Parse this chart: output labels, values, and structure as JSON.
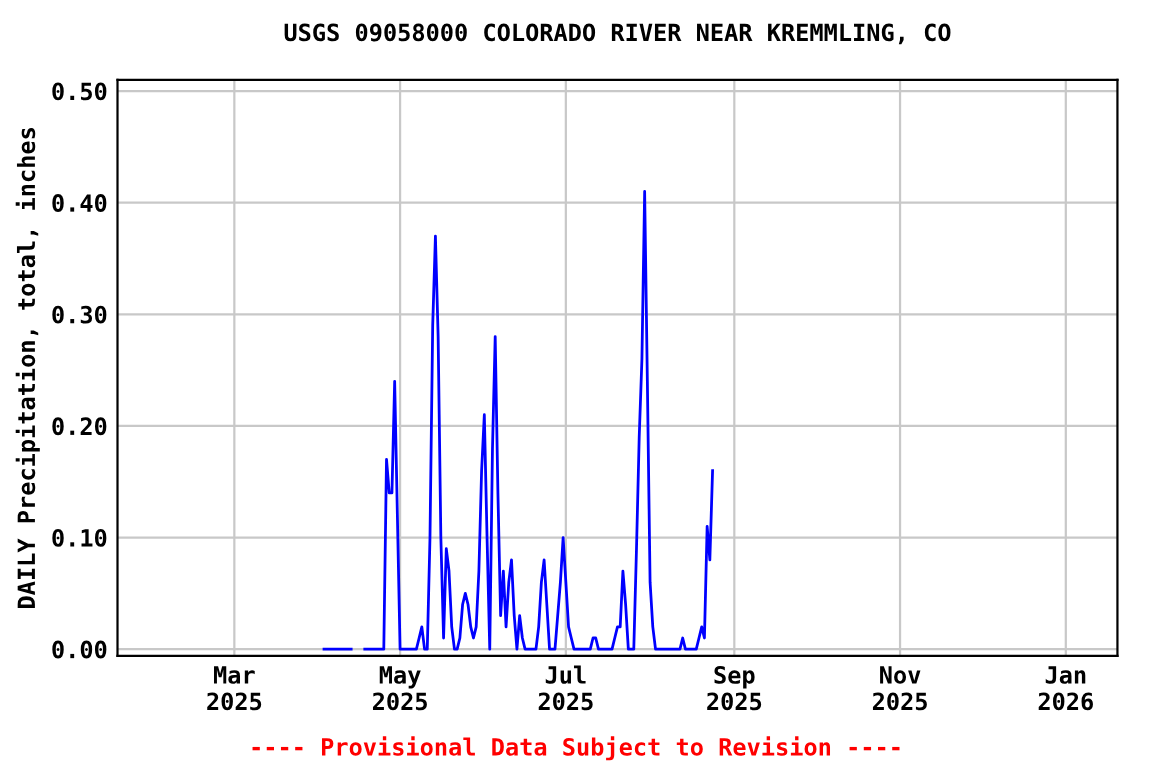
{
  "chart_data": {
    "type": "line",
    "title": "USGS 09058000 COLORADO RIVER NEAR KREMMLING, CO",
    "ylabel": "DAILY Precipitation, total, inches",
    "annotations": [
      "---- Provisional Data Subject to Revision ----"
    ],
    "grid": true,
    "marker": "none",
    "line_style": "solid",
    "xlim": [
      "2025-01-17",
      "2026-01-20"
    ],
    "xticks": [
      {
        "value": "2025-03-01",
        "label": "Mar\n2025"
      },
      {
        "value": "2025-05-01",
        "label": "May\n2025"
      },
      {
        "value": "2025-07-01",
        "label": "Jul\n2025"
      },
      {
        "value": "2025-09-01",
        "label": "Sep\n2025"
      },
      {
        "value": "2025-11-01",
        "label": "Nov\n2025"
      },
      {
        "value": "2026-01-01",
        "label": "Jan\n2026"
      }
    ],
    "ylim": [
      -0.006,
      0.51
    ],
    "yticks": [
      {
        "value": 0,
        "label": "0.00"
      },
      {
        "value": 0.1,
        "label": "0.10"
      },
      {
        "value": 0.2,
        "label": "0.20"
      },
      {
        "value": 0.3,
        "label": "0.30"
      },
      {
        "value": 0.4,
        "label": "0.40"
      },
      {
        "value": 0.5,
        "label": "0.50"
      }
    ],
    "x": [
      "2025-04-03",
      "2025-04-04",
      "2025-04-05",
      "2025-04-06",
      "2025-04-07",
      "2025-04-08",
      "2025-04-09",
      "2025-04-10",
      "2025-04-11",
      "2025-04-12",
      "2025-04-13",
      "2025-04-14",
      "2025-04-15",
      "2025-04-16",
      "2025-04-17",
      "2025-04-18",
      "2025-04-19",
      "2025-04-20",
      "2025-04-21",
      "2025-04-22",
      "2025-04-23",
      "2025-04-24",
      "2025-04-25",
      "2025-04-26",
      "2025-04-27",
      "2025-04-28",
      "2025-04-29",
      "2025-04-30",
      "2025-05-01",
      "2025-05-02",
      "2025-05-03",
      "2025-05-04",
      "2025-05-05",
      "2025-05-06",
      "2025-05-07",
      "2025-05-08",
      "2025-05-09",
      "2025-05-10",
      "2025-05-11",
      "2025-05-12",
      "2025-05-13",
      "2025-05-14",
      "2025-05-15",
      "2025-05-16",
      "2025-05-17",
      "2025-05-18",
      "2025-05-19",
      "2025-05-20",
      "2025-05-21",
      "2025-05-22",
      "2025-05-23",
      "2025-05-24",
      "2025-05-25",
      "2025-05-26",
      "2025-05-27",
      "2025-05-28",
      "2025-05-29",
      "2025-05-30",
      "2025-05-31",
      "2025-06-01",
      "2025-06-02",
      "2025-06-03",
      "2025-06-04",
      "2025-06-05",
      "2025-06-06",
      "2025-06-07",
      "2025-06-08",
      "2025-06-09",
      "2025-06-10",
      "2025-06-11",
      "2025-06-12",
      "2025-06-13",
      "2025-06-14",
      "2025-06-15",
      "2025-06-16",
      "2025-06-17",
      "2025-06-18",
      "2025-06-19",
      "2025-06-20",
      "2025-06-21",
      "2025-06-22",
      "2025-06-23",
      "2025-06-24",
      "2025-06-25",
      "2025-06-26",
      "2025-06-27",
      "2025-06-28",
      "2025-06-29",
      "2025-06-30",
      "2025-07-01",
      "2025-07-02",
      "2025-07-03",
      "2025-07-04",
      "2025-07-05",
      "2025-07-06",
      "2025-07-07",
      "2025-07-08",
      "2025-07-09",
      "2025-07-10",
      "2025-07-11",
      "2025-07-12",
      "2025-07-13",
      "2025-07-14",
      "2025-07-15",
      "2025-07-16",
      "2025-07-17",
      "2025-07-18",
      "2025-07-19",
      "2025-07-20",
      "2025-07-21",
      "2025-07-22",
      "2025-07-23",
      "2025-07-24",
      "2025-07-25",
      "2025-07-26",
      "2025-07-27",
      "2025-07-28",
      "2025-07-29",
      "2025-07-30",
      "2025-07-31",
      "2025-08-01",
      "2025-08-02",
      "2025-08-03",
      "2025-08-04",
      "2025-08-05",
      "2025-08-06",
      "2025-08-07",
      "2025-08-08",
      "2025-08-09",
      "2025-08-10",
      "2025-08-11",
      "2025-08-12",
      "2025-08-13",
      "2025-08-14",
      "2025-08-15",
      "2025-08-16",
      "2025-08-17",
      "2025-08-18",
      "2025-08-19",
      "2025-08-20",
      "2025-08-21",
      "2025-08-22",
      "2025-08-23",
      "2025-08-24"
    ],
    "series": [
      {
        "color": "#0000ff",
        "values": [
          0,
          0,
          0,
          0,
          0,
          0,
          0,
          0,
          0,
          0,
          0,
          null,
          null,
          null,
          null,
          0,
          0,
          0,
          0,
          0,
          0,
          0,
          0,
          0.17,
          0.14,
          0.14,
          0.24,
          0.12,
          0,
          0,
          0,
          0,
          0,
          0,
          0,
          0.01,
          0.02,
          0,
          0,
          0.1,
          0.29,
          0.37,
          0.28,
          0.1,
          0.01,
          0.09,
          0.07,
          0.02,
          0,
          0,
          0.01,
          0.04,
          0.05,
          0.04,
          0.02,
          0.01,
          0.02,
          0.07,
          0.16,
          0.21,
          0.1,
          0,
          0.18,
          0.28,
          0.14,
          0.03,
          0.07,
          0.02,
          0.06,
          0.08,
          0.03,
          0,
          0.03,
          0.01,
          0,
          0,
          0,
          0,
          0,
          0.02,
          0.06,
          0.08,
          0.04,
          0,
          0,
          0,
          0.03,
          0.06,
          0.1,
          0.06,
          0.02,
          0.01,
          0,
          0,
          0,
          0,
          0,
          0,
          0,
          0.01,
          0.01,
          0,
          0,
          0,
          0,
          0,
          0,
          0.01,
          0.02,
          0.02,
          0.07,
          0.04,
          0,
          0,
          0,
          0.09,
          0.19,
          0.26,
          0.41,
          0.24,
          0.06,
          0.02,
          0,
          0,
          0,
          0,
          0,
          0,
          0,
          0,
          0,
          0,
          0.01,
          0,
          0,
          0,
          0,
          0,
          0.01,
          0.02,
          0.01,
          0.11,
          0.08,
          0.16
        ]
      }
    ]
  }
}
